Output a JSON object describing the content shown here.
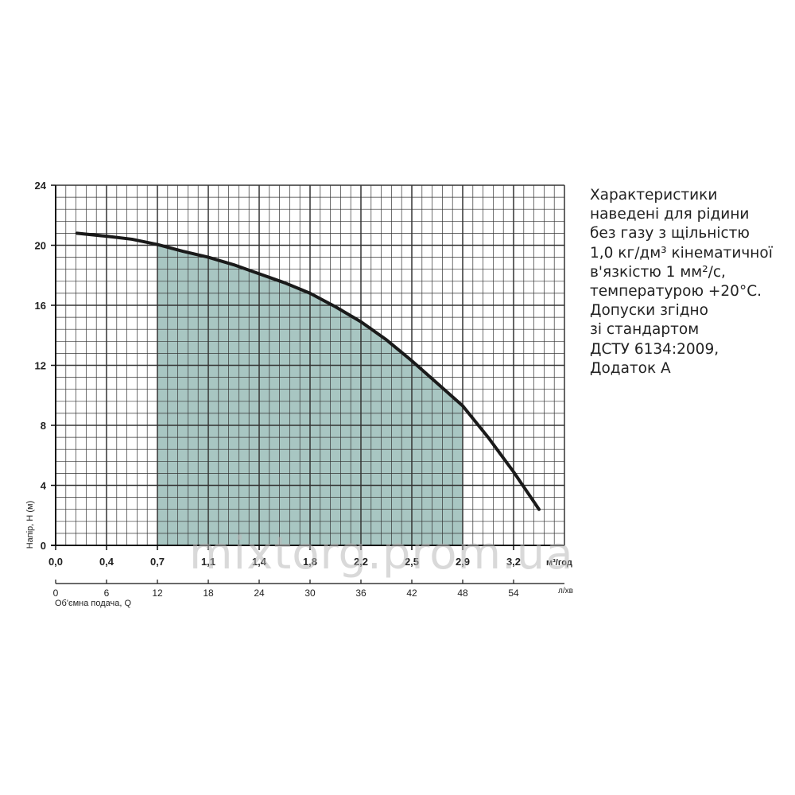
{
  "chart_data": {
    "type": "line",
    "ylabel": "Напір, H (м)",
    "xlabel": "Об'ємна подача, Q",
    "y_ticks": [
      "0",
      "4",
      "8",
      "12",
      "16",
      "20",
      "24"
    ],
    "ylim": [
      0,
      24
    ],
    "xlim_lpm": [
      0,
      60
    ],
    "x_ticks_m3h": [
      "0,0",
      "0,4",
      "0,7",
      "1,1",
      "1,4",
      "1,8",
      "2,2",
      "2,5",
      "2,9",
      "3,2"
    ],
    "x_unit_m3h": "м³/год",
    "x_ticks_lpm": [
      "0",
      "6",
      "12",
      "18",
      "24",
      "30",
      "36",
      "42",
      "48",
      "54"
    ],
    "x_unit_lpm": "л/хв",
    "series": [
      {
        "x": [
          2.5,
          6,
          9,
          12,
          15,
          18,
          21,
          24,
          27,
          30,
          33,
          36,
          39,
          42,
          45,
          48,
          51,
          54,
          57
        ],
        "y": [
          20.8,
          20.6,
          20.4,
          20.05,
          19.6,
          19.2,
          18.7,
          18.1,
          17.5,
          16.8,
          15.9,
          14.9,
          13.7,
          12.3,
          10.8,
          9.3,
          7.2,
          4.9,
          2.4
        ]
      }
    ],
    "recommended_range_lpm": [
      12,
      48
    ],
    "grid": true,
    "colors": {
      "curve": "#1a1a1a",
      "fill": "#a8c6c2",
      "grid": "#333333"
    }
  },
  "note": {
    "lines": [
      "Характеристики",
      "наведені для рідини",
      "без газу з щільністю",
      "1,0 кг/дм³ кінематичної",
      "в'язкістю 1 мм²/с,",
      "температурою +20°С.",
      "Допуски згідно",
      "зі стандартом",
      "ДСТУ 6134:2009,",
      "Додаток А"
    ]
  },
  "watermark": "mixtorg.prom.ua"
}
